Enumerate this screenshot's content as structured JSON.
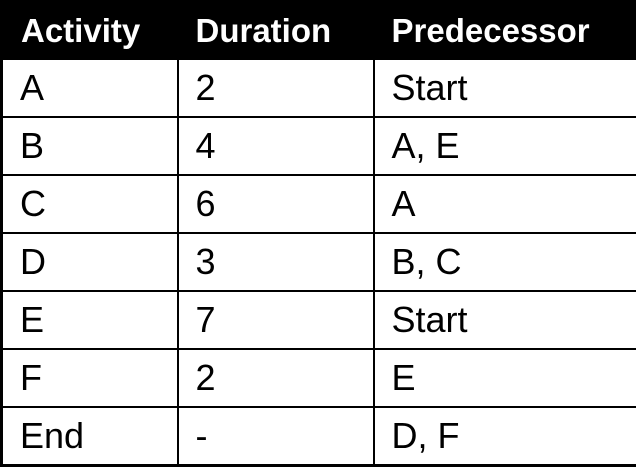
{
  "chart_data": {
    "type": "table",
    "columns": [
      "Activity",
      "Duration",
      "Predecessor"
    ],
    "rows": [
      [
        "A",
        "2",
        "Start"
      ],
      [
        "B",
        "4",
        "A, E"
      ],
      [
        "C",
        "6",
        "A"
      ],
      [
        "D",
        "3",
        "B, C"
      ],
      [
        "E",
        "7",
        "Start"
      ],
      [
        "F",
        "2",
        "E"
      ],
      [
        "End",
        "-",
        "D, F"
      ]
    ]
  },
  "colors": {
    "header_bg": "#000000",
    "header_text": "#ffffff",
    "body_bg": "#ffffff",
    "body_text": "#000000",
    "border": "#000000"
  }
}
